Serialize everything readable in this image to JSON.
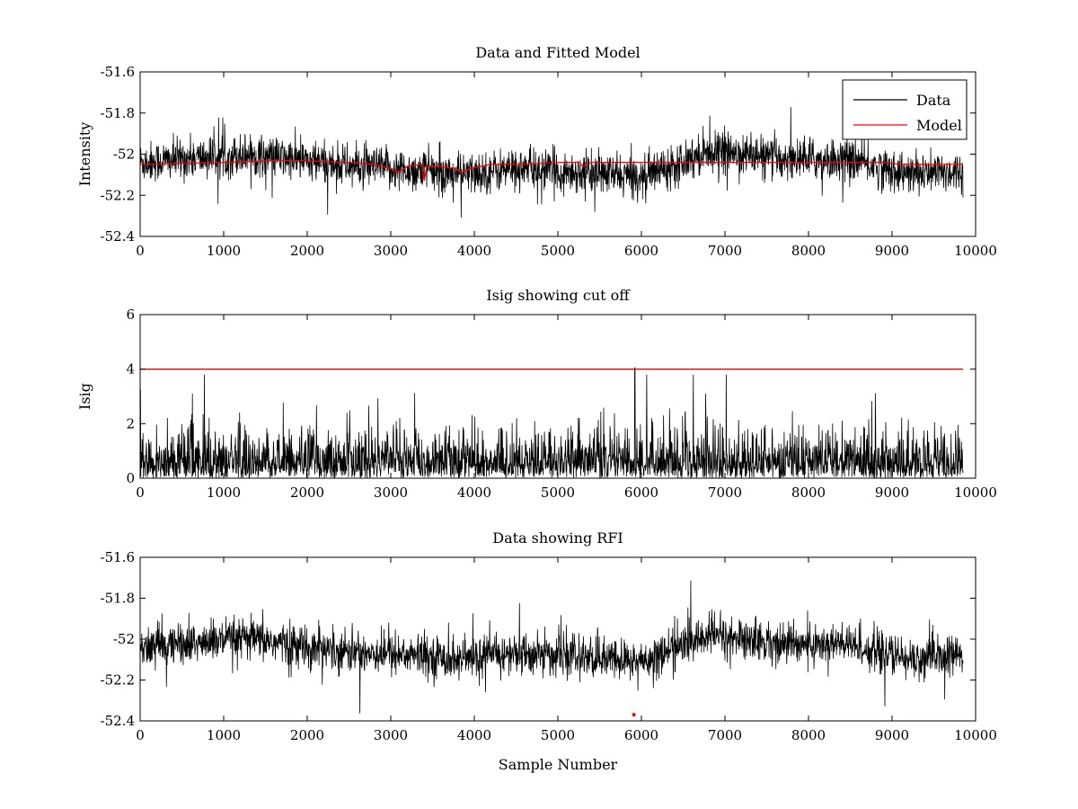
{
  "chart_data": [
    {
      "type": "line",
      "title": "Data and Fitted Model",
      "xlabel": "",
      "ylabel": "Intensity",
      "xlim": [
        0,
        10000
      ],
      "ylim": [
        -52.4,
        -51.6
      ],
      "xticks": [
        0,
        1000,
        2000,
        3000,
        4000,
        5000,
        6000,
        7000,
        8000,
        9000,
        10000
      ],
      "xtick_labels": [
        "0",
        "1000",
        "2000",
        "3000",
        "4000",
        "5000",
        "6000",
        "7000",
        "8000",
        "9000",
        "10000"
      ],
      "yticks": [
        -52.4,
        -52.2,
        -52,
        -51.8,
        -51.6
      ],
      "ytick_labels": [
        "-52.4",
        "-52.2",
        "-52",
        "-51.8",
        "-51.6"
      ],
      "legend": {
        "position": "top-right",
        "entries": [
          "Data",
          "Model"
        ]
      },
      "series": [
        {
          "name": "Data",
          "color": "#000000",
          "kind": "noise",
          "x_range": [
            0,
            9850
          ],
          "baseline": -52.04,
          "band": 0.09,
          "spike_max": 0.3,
          "envelope": [
            [
              0,
              0.0
            ],
            [
              1300,
              0.04
            ],
            [
              2500,
              -0.02
            ],
            [
              3400,
              -0.04
            ],
            [
              3850,
              -0.06
            ],
            [
              4500,
              -0.03
            ],
            [
              5300,
              -0.05
            ],
            [
              6000,
              -0.07
            ],
            [
              6800,
              0.06
            ],
            [
              7600,
              0.02
            ],
            [
              8500,
              0.01
            ],
            [
              9200,
              -0.06
            ],
            [
              9850,
              -0.04
            ]
          ]
        },
        {
          "name": "Model",
          "color": "#ff0000",
          "kind": "line",
          "x": [
            0,
            1000,
            1800,
            2500,
            2800,
            3000,
            3080,
            3200,
            3370,
            3400,
            3430,
            3600,
            3780,
            3850,
            3950,
            4200,
            4600,
            5000,
            5250,
            5300,
            5400,
            6000,
            8900,
            9100,
            9850
          ],
          "y": [
            -52.05,
            -52.04,
            -52.03,
            -52.04,
            -52.05,
            -52.07,
            -52.09,
            -52.06,
            -52.05,
            -52.13,
            -52.06,
            -52.06,
            -52.07,
            -52.09,
            -52.07,
            -52.05,
            -52.05,
            -52.04,
            -52.04,
            -52.06,
            -52.04,
            -52.04,
            -52.04,
            -52.05,
            -52.05
          ]
        }
      ]
    },
    {
      "type": "line",
      "title": "Isig showing cut off",
      "xlabel": "",
      "ylabel": "Isig",
      "xlim": [
        0,
        10000
      ],
      "ylim": [
        0,
        6
      ],
      "xticks": [
        0,
        1000,
        2000,
        3000,
        4000,
        5000,
        6000,
        7000,
        8000,
        9000,
        10000
      ],
      "xtick_labels": [
        "0",
        "1000",
        "2000",
        "3000",
        "4000",
        "5000",
        "6000",
        "7000",
        "8000",
        "9000",
        "10000"
      ],
      "yticks": [
        0,
        2,
        4,
        6
      ],
      "ytick_labels": [
        "0",
        "2",
        "4",
        "6"
      ],
      "series": [
        {
          "name": "Isig",
          "color": "#000000",
          "kind": "abs-noise",
          "x_range": [
            0,
            9850
          ],
          "typical_max": 1.8,
          "spike_max": 3.8,
          "peak": {
            "x": 5920,
            "y": 4.05
          }
        },
        {
          "name": "Cut off",
          "color": "#ff0000",
          "kind": "line",
          "x": [
            0,
            9850
          ],
          "y": [
            4,
            4
          ]
        }
      ]
    },
    {
      "type": "line",
      "title": "Data showing RFI",
      "xlabel": "Sample Number",
      "ylabel": "",
      "xlim": [
        0,
        10000
      ],
      "ylim": [
        -52.4,
        -51.6
      ],
      "xticks": [
        0,
        1000,
        2000,
        3000,
        4000,
        5000,
        6000,
        7000,
        8000,
        9000,
        10000
      ],
      "xtick_labels": [
        "0",
        "1000",
        "2000",
        "3000",
        "4000",
        "5000",
        "6000",
        "7000",
        "8000",
        "9000",
        "10000"
      ],
      "yticks": [
        -52.4,
        -52.2,
        -52,
        -51.8,
        -51.6
      ],
      "ytick_labels": [
        "-52.4",
        "-52.2",
        "-52",
        "-51.8",
        "-51.6"
      ],
      "series": [
        {
          "name": "Data",
          "color": "#000000",
          "kind": "noise",
          "x_range": [
            0,
            9850
          ],
          "baseline": -52.04,
          "band": 0.09,
          "spike_max": 0.3,
          "envelope": [
            [
              0,
              0.0
            ],
            [
              1300,
              0.04
            ],
            [
              2500,
              -0.02
            ],
            [
              3400,
              -0.04
            ],
            [
              3850,
              -0.06
            ],
            [
              4500,
              -0.03
            ],
            [
              5300,
              -0.05
            ],
            [
              6000,
              -0.07
            ],
            [
              6800,
              0.06
            ],
            [
              7600,
              0.02
            ],
            [
              8500,
              0.01
            ],
            [
              9200,
              -0.06
            ],
            [
              9850,
              -0.04
            ]
          ]
        },
        {
          "name": "RFI",
          "color": "#ff0000",
          "kind": "marker",
          "x": [
            5910
          ],
          "y": [
            -52.37
          ]
        }
      ]
    }
  ]
}
